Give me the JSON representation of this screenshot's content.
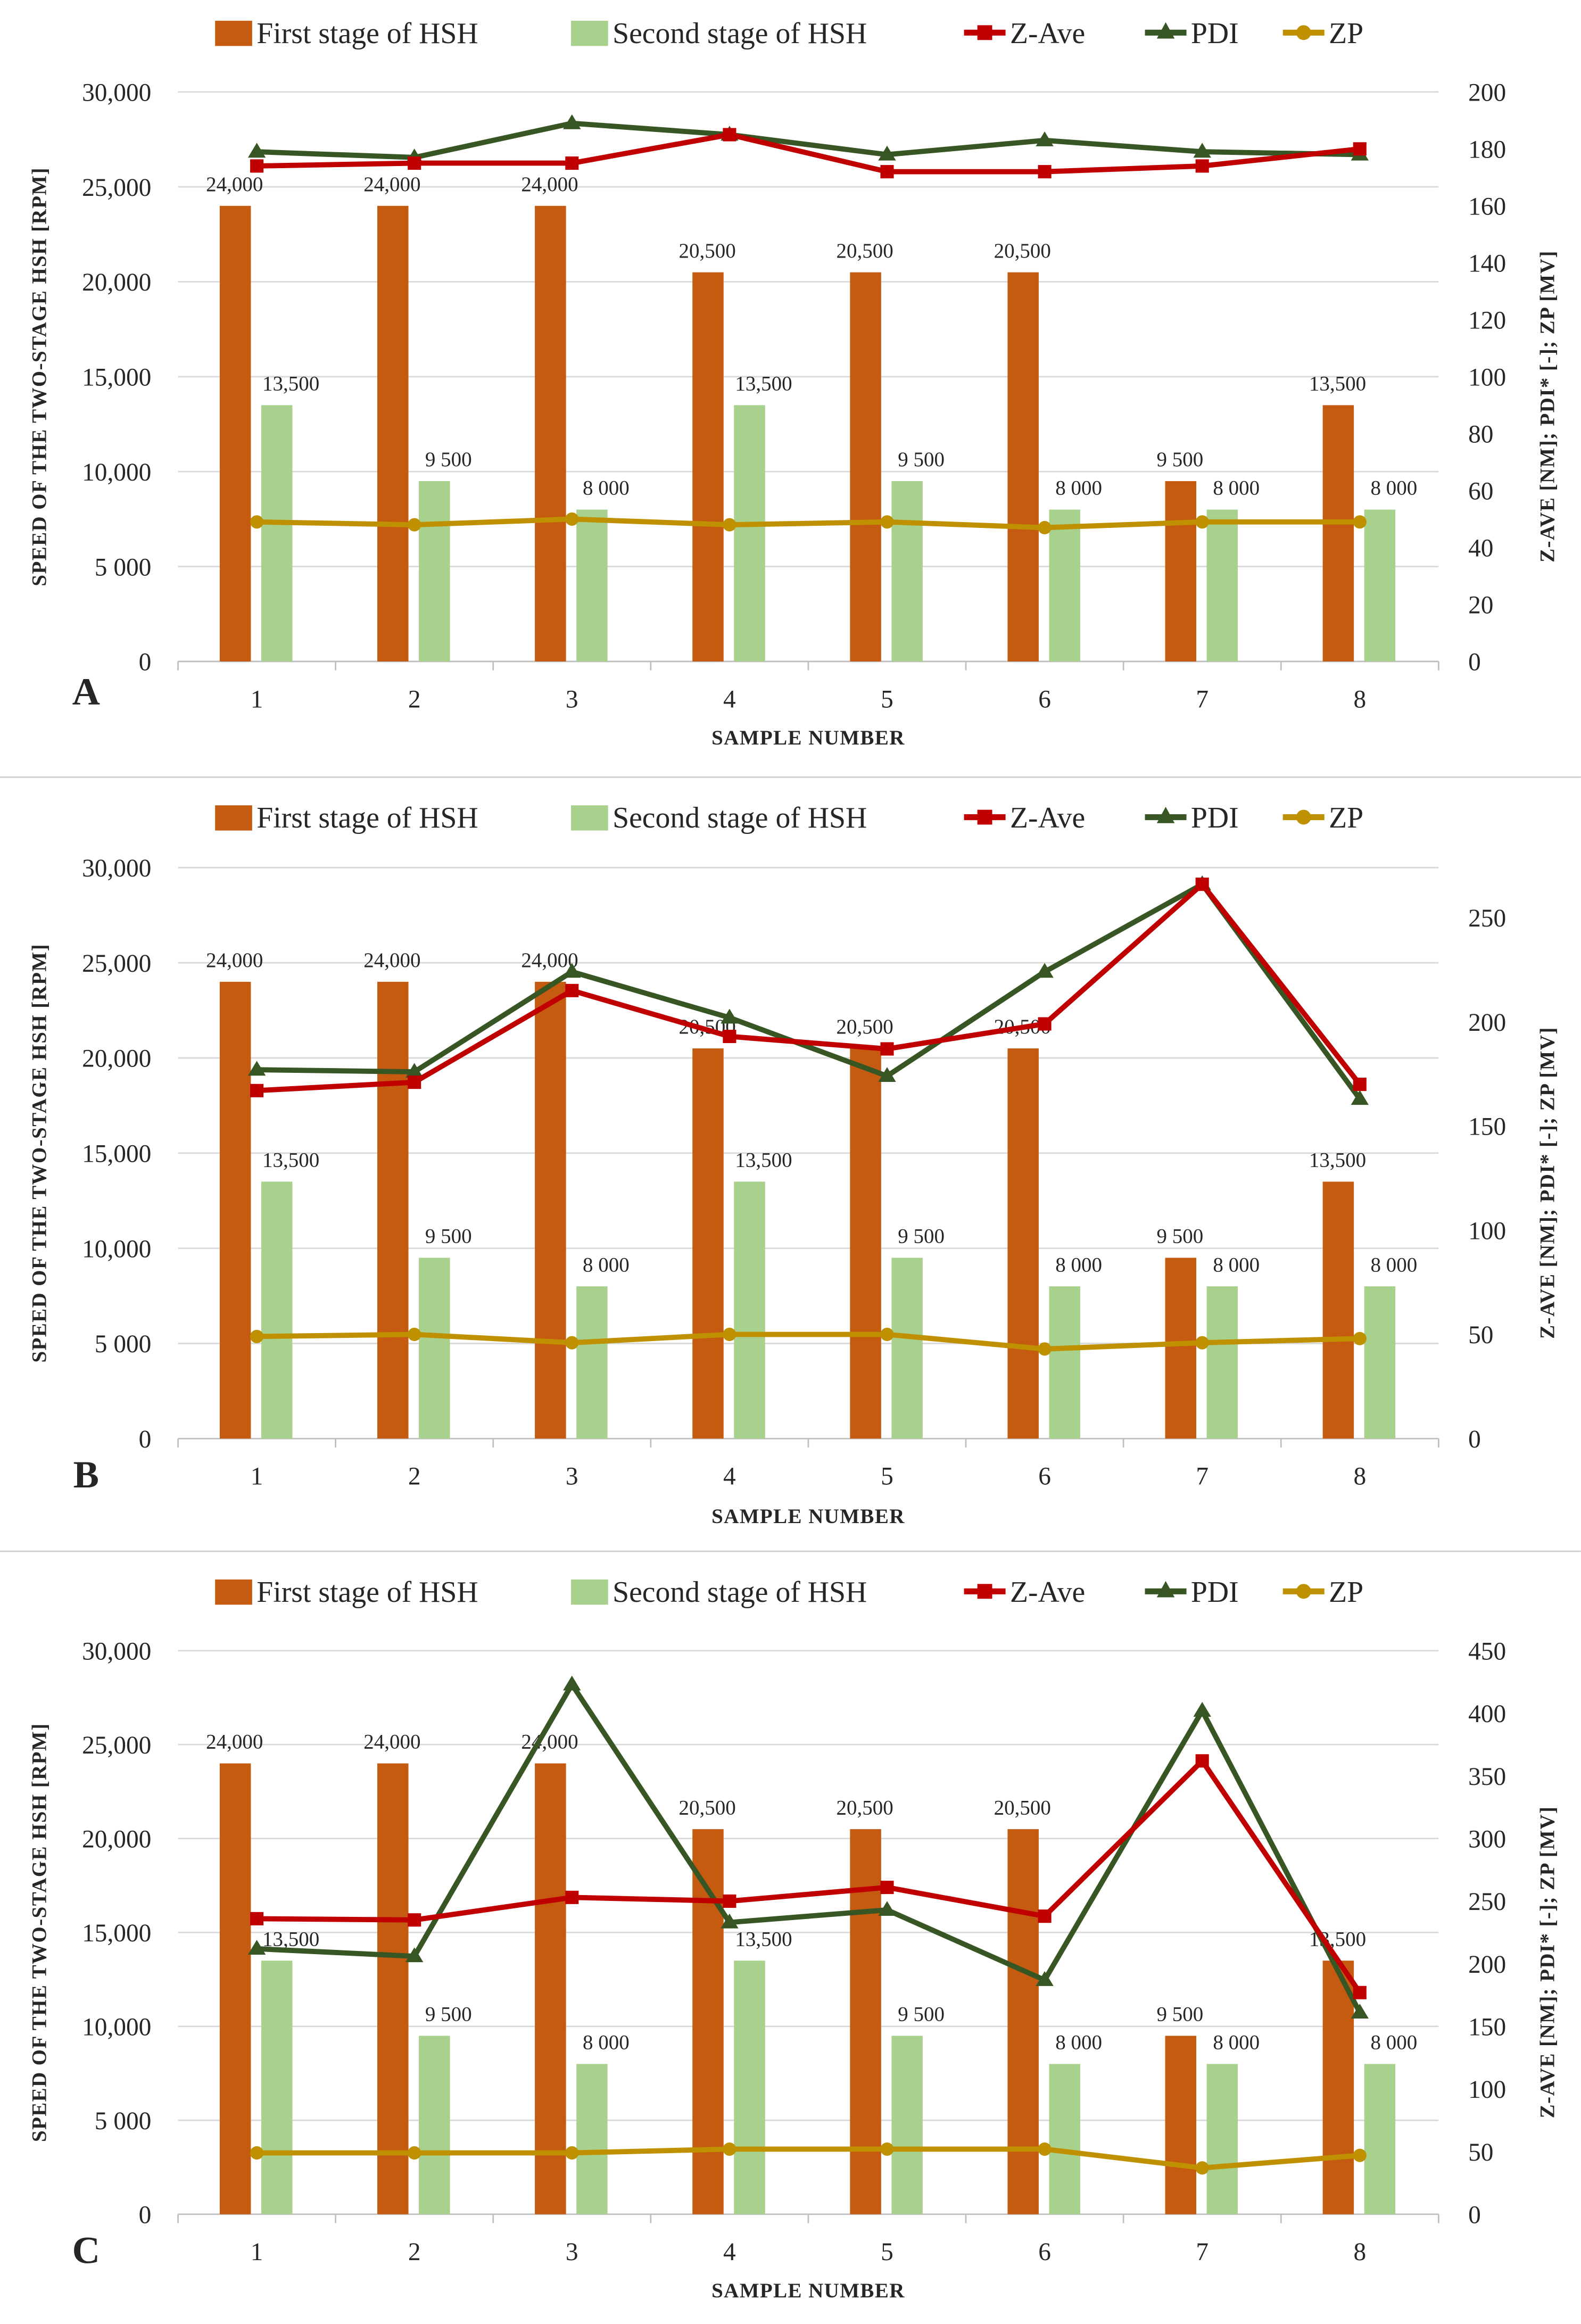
{
  "legend": [
    "First stage of HSH",
    "Second stage of HSH",
    "Z-Ave",
    "PDI",
    "ZP"
  ],
  "colors": {
    "first": "#c55a11",
    "second": "#a9d18e",
    "zave": "#c00000",
    "pdi": "#375623",
    "zp": "#bf9000",
    "grid": "#d9d9d9"
  },
  "chart_data": [
    {
      "type": "bar+line",
      "panel": "A",
      "categories": [
        "1",
        "2",
        "3",
        "4",
        "5",
        "6",
        "7",
        "8"
      ],
      "xlabel": "SAMPLE NUMBER",
      "ylabel": "SPEED OF THE TWO-STAGE HSH [RPM]",
      "y2label": "Z-AVE [NM]; PDI* [-]; ZP [MV]",
      "ylim": [
        0,
        30000
      ],
      "yticks": [
        "0",
        "5 000",
        "10,000",
        "15,000",
        "20,000",
        "25,000",
        "30,000"
      ],
      "y2lim": [
        0,
        200
      ],
      "y2ticks": [
        "0",
        "20",
        "40",
        "60",
        "80",
        "100",
        "120",
        "140",
        "160",
        "180",
        "200"
      ],
      "series": [
        {
          "name": "First stage of HSH",
          "kind": "bar",
          "values": [
            24000,
            24000,
            24000,
            20500,
            20500,
            20500,
            9500,
            13500
          ],
          "labels": [
            "24,000",
            "24,000",
            "24,000",
            "20,500",
            "20,500",
            "20,500",
            "9 500",
            "13,500"
          ]
        },
        {
          "name": "Second stage of HSH",
          "kind": "bar",
          "values": [
            13500,
            9500,
            8000,
            13500,
            9500,
            8000,
            8000,
            8000
          ],
          "labels": [
            "13,500",
            "9 500",
            "8 000",
            "13,500",
            "9 500",
            "8 000",
            "8 000",
            "8 000"
          ]
        },
        {
          "name": "Z-Ave",
          "kind": "line",
          "axis": "right",
          "values": [
            174,
            175,
            175,
            185,
            172,
            172,
            174,
            180
          ]
        },
        {
          "name": "PDI",
          "kind": "line",
          "axis": "right",
          "values": [
            179,
            177,
            189,
            185,
            178,
            183,
            179,
            178
          ]
        },
        {
          "name": "ZP",
          "kind": "line",
          "axis": "right",
          "values": [
            49,
            48,
            50,
            48,
            49,
            47,
            49,
            49
          ]
        }
      ]
    },
    {
      "type": "bar+line",
      "panel": "B",
      "categories": [
        "1",
        "2",
        "3",
        "4",
        "5",
        "6",
        "7",
        "8"
      ],
      "xlabel": "SAMPLE NUMBER",
      "ylabel": "SPEED OF THE TWO-STAGE HSH [RPM]",
      "y2label": "Z-AVE [NM]; PDI* [-]; ZP [MV]",
      "ylim": [
        0,
        30000
      ],
      "yticks": [
        "0",
        "5 000",
        "10,000",
        "15,000",
        "20,000",
        "25,000",
        "30,000"
      ],
      "y2lim": [
        0,
        274
      ],
      "y2ticks": [
        "0",
        "50",
        "100",
        "150",
        "200",
        "250"
      ],
      "series": [
        {
          "name": "First stage of HSH",
          "kind": "bar",
          "values": [
            24000,
            24000,
            24000,
            20500,
            20500,
            20500,
            9500,
            13500
          ],
          "labels": [
            "24,000",
            "24,000",
            "24,000",
            "20,500",
            "20,500",
            "20,500",
            "9 500",
            "13,500"
          ]
        },
        {
          "name": "Second stage of HSH",
          "kind": "bar",
          "values": [
            13500,
            9500,
            8000,
            13500,
            9500,
            8000,
            8000,
            8000
          ],
          "labels": [
            "13,500",
            "9 500",
            "8 000",
            "13,500",
            "9 500",
            "8 000",
            "8 000",
            "8 000"
          ]
        },
        {
          "name": "Z-Ave",
          "kind": "line",
          "axis": "right",
          "values": [
            167,
            171,
            215,
            193,
            187,
            199,
            266,
            170
          ]
        },
        {
          "name": "PDI",
          "kind": "line",
          "axis": "right",
          "values": [
            177,
            176,
            224,
            202,
            174,
            224,
            266,
            163
          ]
        },
        {
          "name": "ZP",
          "kind": "line",
          "axis": "right",
          "values": [
            49,
            50,
            46,
            50,
            50,
            43,
            46,
            48
          ]
        }
      ]
    },
    {
      "type": "bar+line",
      "panel": "C",
      "categories": [
        "1",
        "2",
        "3",
        "4",
        "5",
        "6",
        "7",
        "8"
      ],
      "xlabel": "SAMPLE NUMBER",
      "ylabel": "SPEED OF THE TWO-STAGE HSH [RPM]",
      "y2label": "Z-AVE [NM]; PDI* [-]; ZP [MV]",
      "ylim": [
        0,
        30000
      ],
      "yticks": [
        "0",
        "5 000",
        "10,000",
        "15,000",
        "20,000",
        "25,000",
        "30,000"
      ],
      "y2lim": [
        0,
        450
      ],
      "y2ticks": [
        "0",
        "50",
        "100",
        "150",
        "200",
        "250",
        "300",
        "350",
        "400",
        "450"
      ],
      "series": [
        {
          "name": "First stage of HSH",
          "kind": "bar",
          "values": [
            24000,
            24000,
            24000,
            20500,
            20500,
            20500,
            9500,
            13500
          ],
          "labels": [
            "24,000",
            "24,000",
            "24,000",
            "20,500",
            "20,500",
            "20,500",
            "9 500",
            "13,500"
          ]
        },
        {
          "name": "Second stage of HSH",
          "kind": "bar",
          "values": [
            13500,
            9500,
            8000,
            13500,
            9500,
            8000,
            8000,
            8000
          ],
          "labels": [
            "13,500",
            "9 500",
            "8 000",
            "13,500",
            "9 500",
            "8 000",
            "8 000",
            "8 000"
          ]
        },
        {
          "name": "Z-Ave",
          "kind": "line",
          "axis": "right",
          "values": [
            236,
            235,
            253,
            250,
            261,
            238,
            362,
            177
          ]
        },
        {
          "name": "PDI",
          "kind": "line",
          "axis": "right",
          "values": [
            212,
            206,
            423,
            233,
            243,
            187,
            402,
            161
          ]
        },
        {
          "name": "ZP",
          "kind": "line",
          "axis": "right",
          "values": [
            49,
            49,
            49,
            52,
            52,
            52,
            37,
            47
          ]
        }
      ]
    }
  ]
}
